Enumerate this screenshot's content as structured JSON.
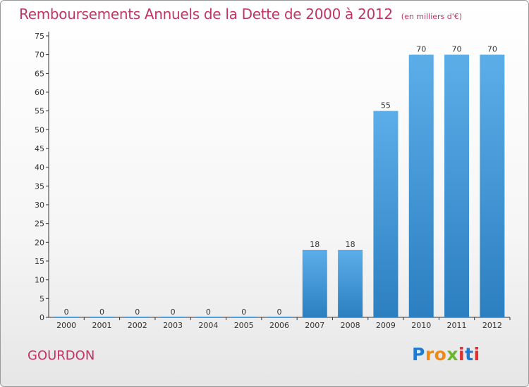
{
  "header": {
    "title": "Remboursements Annuels de la Dette de 2000 à 2012",
    "unit": "(en milliers d'€)"
  },
  "footer": {
    "commune": "GOURDON",
    "logo": [
      "P",
      "r",
      "o",
      "x",
      "i",
      "t",
      "i"
    ]
  },
  "colors": {
    "title": "#c03563",
    "bar_light": "#5caee9",
    "bar_dark": "#2c7fc0",
    "logo": [
      "#1f7bd1",
      "#f08a17",
      "#f08a17",
      "#6cb52e",
      "#e12f2f",
      "#1f7bd1",
      "#e12f2f"
    ]
  },
  "chart_data": {
    "type": "bar",
    "categories": [
      "2000",
      "2001",
      "2002",
      "2003",
      "2004",
      "2005",
      "2006",
      "2007",
      "2008",
      "2009",
      "2010",
      "2011",
      "2012"
    ],
    "values": [
      0,
      0,
      0,
      0,
      0,
      0,
      0,
      18,
      18,
      55,
      70,
      70,
      70
    ],
    "ylim": [
      0,
      75
    ],
    "yticks": [
      0,
      5,
      10,
      15,
      20,
      25,
      30,
      35,
      40,
      45,
      50,
      55,
      60,
      65,
      70,
      75
    ],
    "grid": false,
    "data_labels": true
  }
}
